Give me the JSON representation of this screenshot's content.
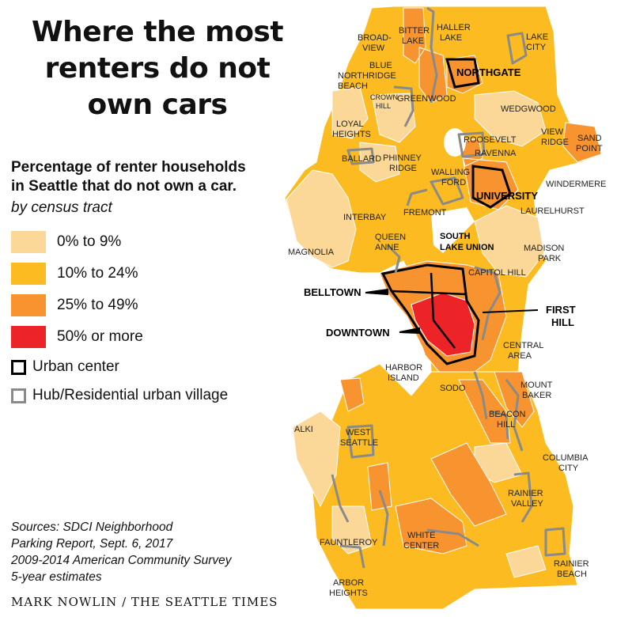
{
  "title_lines": [
    "Where the most",
    "renters do not",
    "own cars"
  ],
  "subtitle_lines": [
    "Percentage of renter households",
    "in Seattle that do not own a car."
  ],
  "byline": "by census tract",
  "legend": [
    {
      "label": "0% to 9%",
      "color": "#fbd898"
    },
    {
      "label": "10% to 24%",
      "color": "#fbbb21"
    },
    {
      "label": "25% to 49%",
      "color": "#f7942f"
    },
    {
      "label": "50% or more",
      "color": "#ec2427"
    }
  ],
  "outline_legend": [
    {
      "label": "Urban center",
      "color": "#000000"
    },
    {
      "label": "Hub/Residential urban village",
      "color": "#8a8a8a"
    }
  ],
  "sources_lines": [
    "Sources: SDCI Neighborhood",
    "Parking Report, Sept. 6, 2017",
    "2009-2014 American Community Survey",
    "5-year estimates"
  ],
  "credit": "MARK NOWLIN / THE SEATTLE TIMES",
  "labels": {
    "bitter_lake": [
      "BITTER",
      "LAKE"
    ],
    "haller_lake": [
      "HALLER",
      "LAKE"
    ],
    "broadview": [
      "BROAD-",
      "VIEW"
    ],
    "lake_city": [
      "LAKE",
      "CITY"
    ],
    "northgate": "NORTHGATE",
    "blue_ridge": [
      "BLUE",
      "NORTHRIDGE",
      "BEACH"
    ],
    "crown_hill": [
      "CROWN",
      "HILL"
    ],
    "greenwood": "GREENWOOD",
    "wedgwood": "WEDGWOOD",
    "view_ridge": [
      "VIEW",
      "RIDGE"
    ],
    "sand_point": [
      "SAND",
      "POINT"
    ],
    "loyal_heights": [
      "LOYAL",
      "HEIGHTS"
    ],
    "roosevelt": "ROOSEVELT",
    "ravenna": "RAVENNA",
    "ballard": "BALLARD",
    "phinney_ridge": [
      "PHINNEY",
      "RIDGE"
    ],
    "wallingford": [
      "WALLING",
      "FORD"
    ],
    "university": "UNIVERSITY",
    "windermere": "WINDERMERE",
    "laurelhurst": "LAURELHURST",
    "fremont": "FREMONT",
    "interbay": "INTERBAY",
    "south_lake_union": [
      "SOUTH",
      "LAKE UNION"
    ],
    "queen_anne": [
      "QUEEN",
      "ANNE"
    ],
    "magnolia": "MAGNOLIA",
    "madison_park": [
      "MADISON",
      "PARK"
    ],
    "capitol_hill": "CAPITOL HILL",
    "belltown": "BELLTOWN",
    "first_hill": [
      "FIRST",
      "HILL"
    ],
    "downtown": "DOWNTOWN",
    "central_area": [
      "CENTRAL",
      "AREA"
    ],
    "harbor_island": [
      "HARBOR",
      "ISLAND"
    ],
    "sodo": "SODO",
    "mount_baker": [
      "MOUNT",
      "BAKER"
    ],
    "beacon_hill": [
      "BEACON",
      "HILL"
    ],
    "alki": "ALKI",
    "west_seattle": [
      "WEST",
      "SEATTLE"
    ],
    "columbia_city": [
      "COLUMBIA",
      "CITY"
    ],
    "rainier_valley": [
      "RAINIER",
      "VALLEY"
    ],
    "white_center": [
      "WHITE",
      "CENTER"
    ],
    "fauntleroy": "FAUNTLEROY",
    "rainier_beach": [
      "RAINIER",
      "BEACH"
    ],
    "arbor_heights": [
      "ARBOR",
      "HEIGHTS"
    ]
  }
}
